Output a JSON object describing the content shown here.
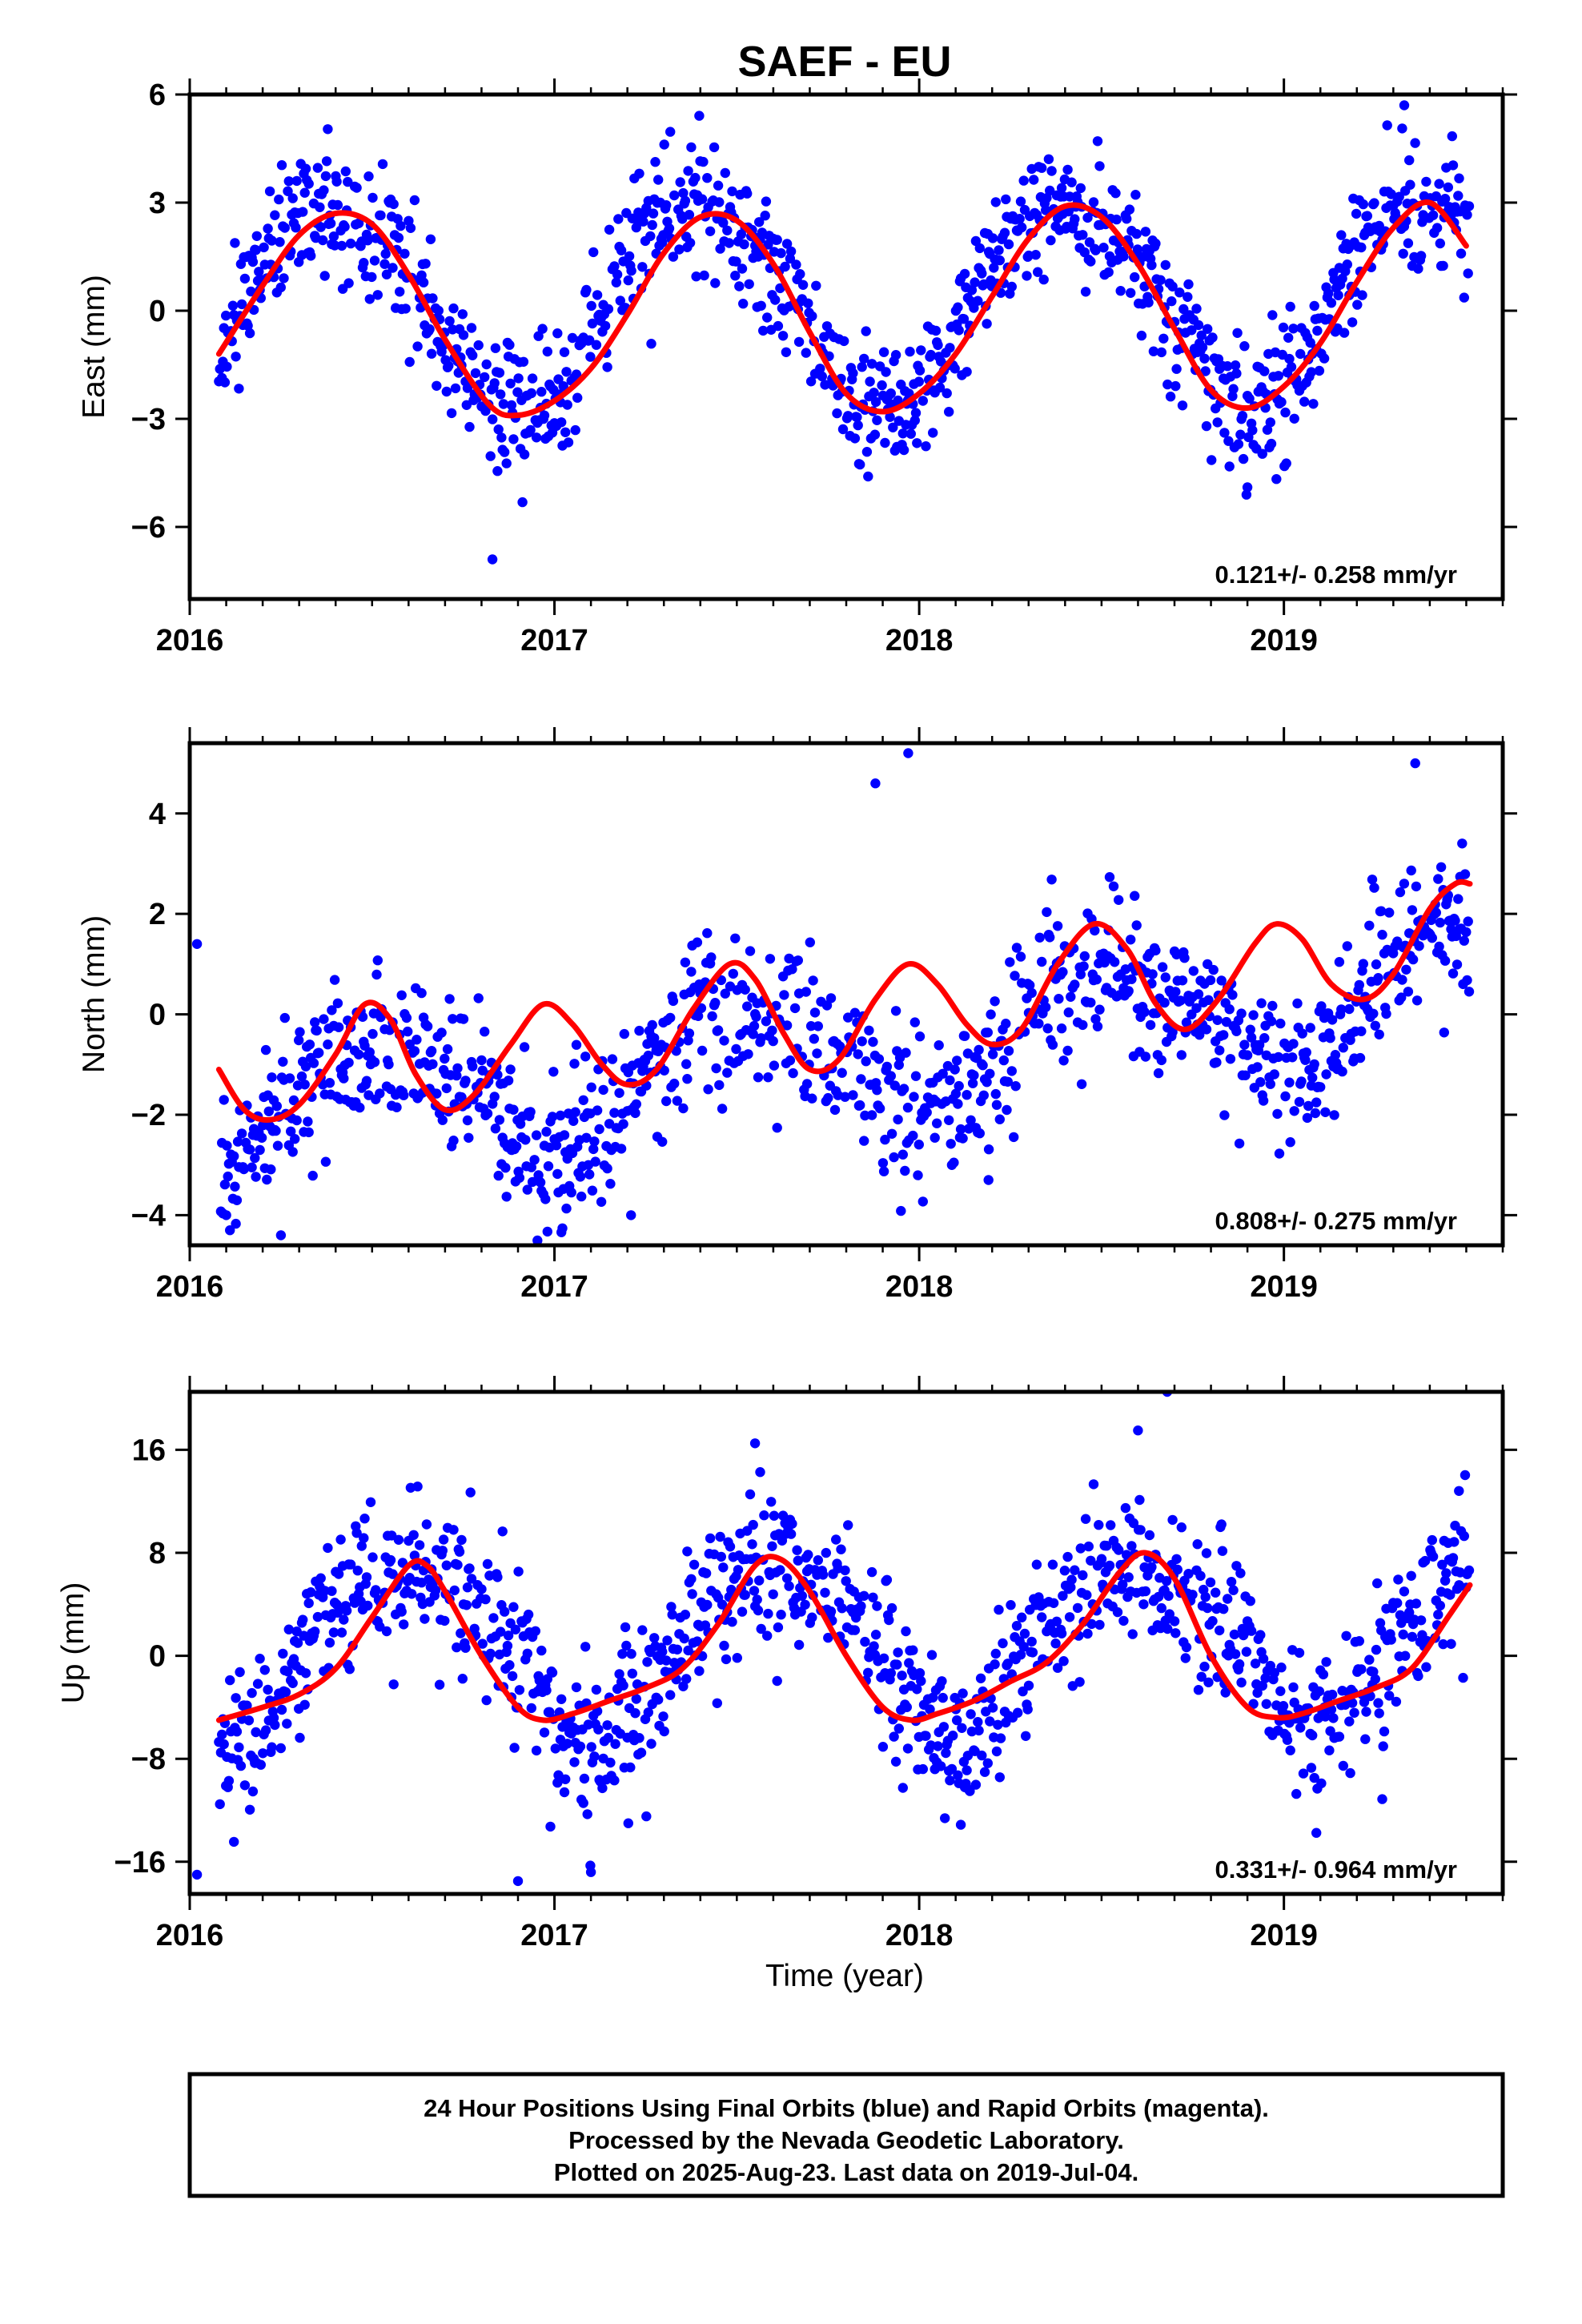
{
  "colors": {
    "points": "#0000ff",
    "fit": "#ff0000",
    "frame": "#000000"
  },
  "title": "SAEF - EU",
  "footer": [
    "24 Hour Positions Using Final Orbits (blue) and Rapid Orbits (magenta).",
    "Processed by the Nevada Geodetic Laboratory.",
    "Plotted on 2025-Aug-23. Last data on 2019-Jul-04."
  ],
  "chart_data": [
    {
      "type": "scatter",
      "title": "SAEF - EU",
      "ylabel": "East (mm)",
      "xlabel": "",
      "xlim": [
        2016,
        2019.6
      ],
      "ylim": [
        -8,
        6
      ],
      "xticks": [
        2016,
        2017,
        2018,
        2019
      ],
      "yticks": [
        -6,
        -3,
        0,
        3,
        6
      ],
      "grid": false,
      "rate": "0.121+/- 0.258 mm/yr",
      "series": [
        {
          "name": "Final Orbits",
          "color": "#0000ff",
          "model": {
            "t_start": 2016.08,
            "t_end": 2019.51,
            "offset": 0.0,
            "trend": 0.121,
            "annual_amp": 2.8,
            "annual_peak": 2016.4,
            "semi_amp": 0.3,
            "semi_peak": 2016.2,
            "noise": 0.9,
            "step_days": 1.0,
            "seed": 11
          },
          "outliers": [
            [
              2016.83,
              -6.9
            ],
            [
              2017.86,
              -4.6
            ],
            [
              2018.9,
              -4.9
            ],
            [
              2019.33,
              5.7
            ]
          ]
        },
        {
          "name": "Fit",
          "color": "#ff0000",
          "knots": [
            [
              2016.08,
              -1.2
            ],
            [
              2016.2,
              0.7
            ],
            [
              2016.3,
              2.1
            ],
            [
              2016.4,
              2.7
            ],
            [
              2016.5,
              2.4
            ],
            [
              2016.6,
              1.0
            ],
            [
              2016.7,
              -0.8
            ],
            [
              2016.82,
              -2.6
            ],
            [
              2016.9,
              -2.9
            ],
            [
              2017.0,
              -2.5
            ],
            [
              2017.1,
              -1.6
            ],
            [
              2017.2,
              -0.1
            ],
            [
              2017.3,
              1.6
            ],
            [
              2017.4,
              2.6
            ],
            [
              2017.5,
              2.5
            ],
            [
              2017.6,
              1.3
            ],
            [
              2017.7,
              -0.6
            ],
            [
              2017.8,
              -2.3
            ],
            [
              2017.9,
              -2.8
            ],
            [
              2018.0,
              -2.3
            ],
            [
              2018.1,
              -1.2
            ],
            [
              2018.2,
              0.4
            ],
            [
              2018.3,
              2.0
            ],
            [
              2018.4,
              2.9
            ],
            [
              2018.5,
              2.6
            ],
            [
              2018.6,
              1.3
            ],
            [
              2018.7,
              -0.5
            ],
            [
              2018.8,
              -2.2
            ],
            [
              2018.9,
              -2.7
            ],
            [
              2019.0,
              -2.1
            ],
            [
              2019.1,
              -0.9
            ],
            [
              2019.2,
              0.8
            ],
            [
              2019.3,
              2.3
            ],
            [
              2019.4,
              3.0
            ],
            [
              2019.5,
              1.8
            ]
          ]
        }
      ]
    },
    {
      "type": "scatter",
      "ylabel": "North (mm)",
      "xlabel": "",
      "xlim": [
        2016,
        2019.6
      ],
      "ylim": [
        -4.6,
        5.4
      ],
      "xticks": [
        2016,
        2017,
        2018,
        2019
      ],
      "yticks": [
        -4,
        -2,
        0,
        2,
        4
      ],
      "grid": false,
      "rate": "0.808+/- 0.275 mm/yr",
      "series": [
        {
          "name": "Final Orbits",
          "color": "#0000ff",
          "model": {
            "t_start": 2016.08,
            "t_end": 2019.51,
            "offset": -2.2,
            "trend": 0.808,
            "annual_amp": 1.2,
            "annual_peak": 2016.5,
            "semi_amp": 0.2,
            "semi_peak": 2016.3,
            "noise": 0.75,
            "step_days": 1.0,
            "seed": 23
          },
          "outliers": [
            [
              2016.02,
              1.4
            ],
            [
              2016.1,
              -4.0
            ],
            [
              2016.25,
              -4.4
            ],
            [
              2017.21,
              -4.0
            ],
            [
              2017.88,
              4.6
            ],
            [
              2017.97,
              5.2
            ],
            [
              2018.19,
              -3.3
            ],
            [
              2019.36,
              5.0
            ]
          ]
        },
        {
          "name": "Fit",
          "color": "#ff0000",
          "knots": [
            [
              2016.08,
              -1.1
            ],
            [
              2016.15,
              -1.9
            ],
            [
              2016.22,
              -2.1
            ],
            [
              2016.3,
              -1.8
            ],
            [
              2016.4,
              -0.8
            ],
            [
              2016.48,
              0.2
            ],
            [
              2016.55,
              -0.1
            ],
            [
              2016.62,
              -1.2
            ],
            [
              2016.7,
              -1.9
            ],
            [
              2016.78,
              -1.6
            ],
            [
              2016.88,
              -0.6
            ],
            [
              2016.97,
              0.2
            ],
            [
              2017.05,
              -0.2
            ],
            [
              2017.13,
              -1.0
            ],
            [
              2017.2,
              -1.4
            ],
            [
              2017.28,
              -1.1
            ],
            [
              2017.38,
              0.1
            ],
            [
              2017.48,
              1.0
            ],
            [
              2017.55,
              0.7
            ],
            [
              2017.63,
              -0.4
            ],
            [
              2017.7,
              -1.1
            ],
            [
              2017.78,
              -0.9
            ],
            [
              2017.88,
              0.3
            ],
            [
              2017.97,
              1.0
            ],
            [
              2018.05,
              0.6
            ],
            [
              2018.13,
              -0.2
            ],
            [
              2018.2,
              -0.6
            ],
            [
              2018.28,
              -0.3
            ],
            [
              2018.38,
              1.0
            ],
            [
              2018.48,
              1.8
            ],
            [
              2018.57,
              1.3
            ],
            [
              2018.65,
              0.2
            ],
            [
              2018.73,
              -0.3
            ],
            [
              2018.82,
              0.3
            ],
            [
              2018.92,
              1.4
            ],
            [
              2018.98,
              1.8
            ],
            [
              2019.05,
              1.5
            ],
            [
              2019.13,
              0.6
            ],
            [
              2019.22,
              0.3
            ],
            [
              2019.3,
              0.8
            ],
            [
              2019.4,
              2.1
            ],
            [
              2019.47,
              2.6
            ],
            [
              2019.51,
              2.6
            ]
          ]
        }
      ]
    },
    {
      "type": "scatter",
      "ylabel": "Up (mm)",
      "xlabel": "Time (year)",
      "xlim": [
        2016,
        2019.6
      ],
      "ylim": [
        -18.5,
        20.5
      ],
      "xticks": [
        2016,
        2017,
        2018,
        2019
      ],
      "yticks": [
        -16,
        -8,
        0,
        8,
        16
      ],
      "grid": false,
      "rate": "0.331+/- 0.964 mm/yr",
      "series": [
        {
          "name": "Final Orbits",
          "color": "#0000ff",
          "model": {
            "t_start": 2016.08,
            "t_end": 2019.51,
            "offset": 0.5,
            "trend": 0.331,
            "annual_amp": 6.5,
            "annual_peak": 2016.6,
            "semi_amp": 1.0,
            "semi_peak": 2016.35,
            "noise": 3.0,
            "step_days": 1.0,
            "seed": 37
          },
          "outliers": [
            [
              2016.02,
              -17.0
            ],
            [
              2016.9,
              -17.5
            ],
            [
              2017.1,
              -16.8
            ],
            [
              2017.55,
              16.5
            ],
            [
              2018.6,
              17.5
            ],
            [
              2018.68,
              20.5
            ],
            [
              2019.48,
              12.8
            ]
          ]
        },
        {
          "name": "Fit",
          "color": "#ff0000",
          "knots": [
            [
              2016.08,
              -5.0
            ],
            [
              2016.2,
              -4.0
            ],
            [
              2016.3,
              -3.0
            ],
            [
              2016.4,
              -1.0
            ],
            [
              2016.5,
              3.0
            ],
            [
              2016.6,
              7.0
            ],
            [
              2016.65,
              7.0
            ],
            [
              2016.7,
              5.0
            ],
            [
              2016.8,
              0.0
            ],
            [
              2016.9,
              -4.0
            ],
            [
              2016.97,
              -5.0
            ],
            [
              2017.05,
              -4.5
            ],
            [
              2017.15,
              -3.5
            ],
            [
              2017.25,
              -2.5
            ],
            [
              2017.35,
              -1.0
            ],
            [
              2017.45,
              2.5
            ],
            [
              2017.55,
              7.0
            ],
            [
              2017.62,
              7.5
            ],
            [
              2017.7,
              5.0
            ],
            [
              2017.8,
              0.0
            ],
            [
              2017.9,
              -4.0
            ],
            [
              2017.98,
              -5.0
            ],
            [
              2018.05,
              -4.5
            ],
            [
              2018.15,
              -3.5
            ],
            [
              2018.25,
              -2.0
            ],
            [
              2018.35,
              -0.5
            ],
            [
              2018.45,
              2.5
            ],
            [
              2018.55,
              6.5
            ],
            [
              2018.62,
              8.0
            ],
            [
              2018.7,
              6.0
            ],
            [
              2018.8,
              0.0
            ],
            [
              2018.9,
              -4.0
            ],
            [
              2018.98,
              -4.8
            ],
            [
              2019.05,
              -4.5
            ],
            [
              2019.15,
              -3.5
            ],
            [
              2019.25,
              -2.5
            ],
            [
              2019.35,
              -1.0
            ],
            [
              2019.45,
              3.0
            ],
            [
              2019.51,
              5.5
            ]
          ]
        }
      ]
    }
  ]
}
